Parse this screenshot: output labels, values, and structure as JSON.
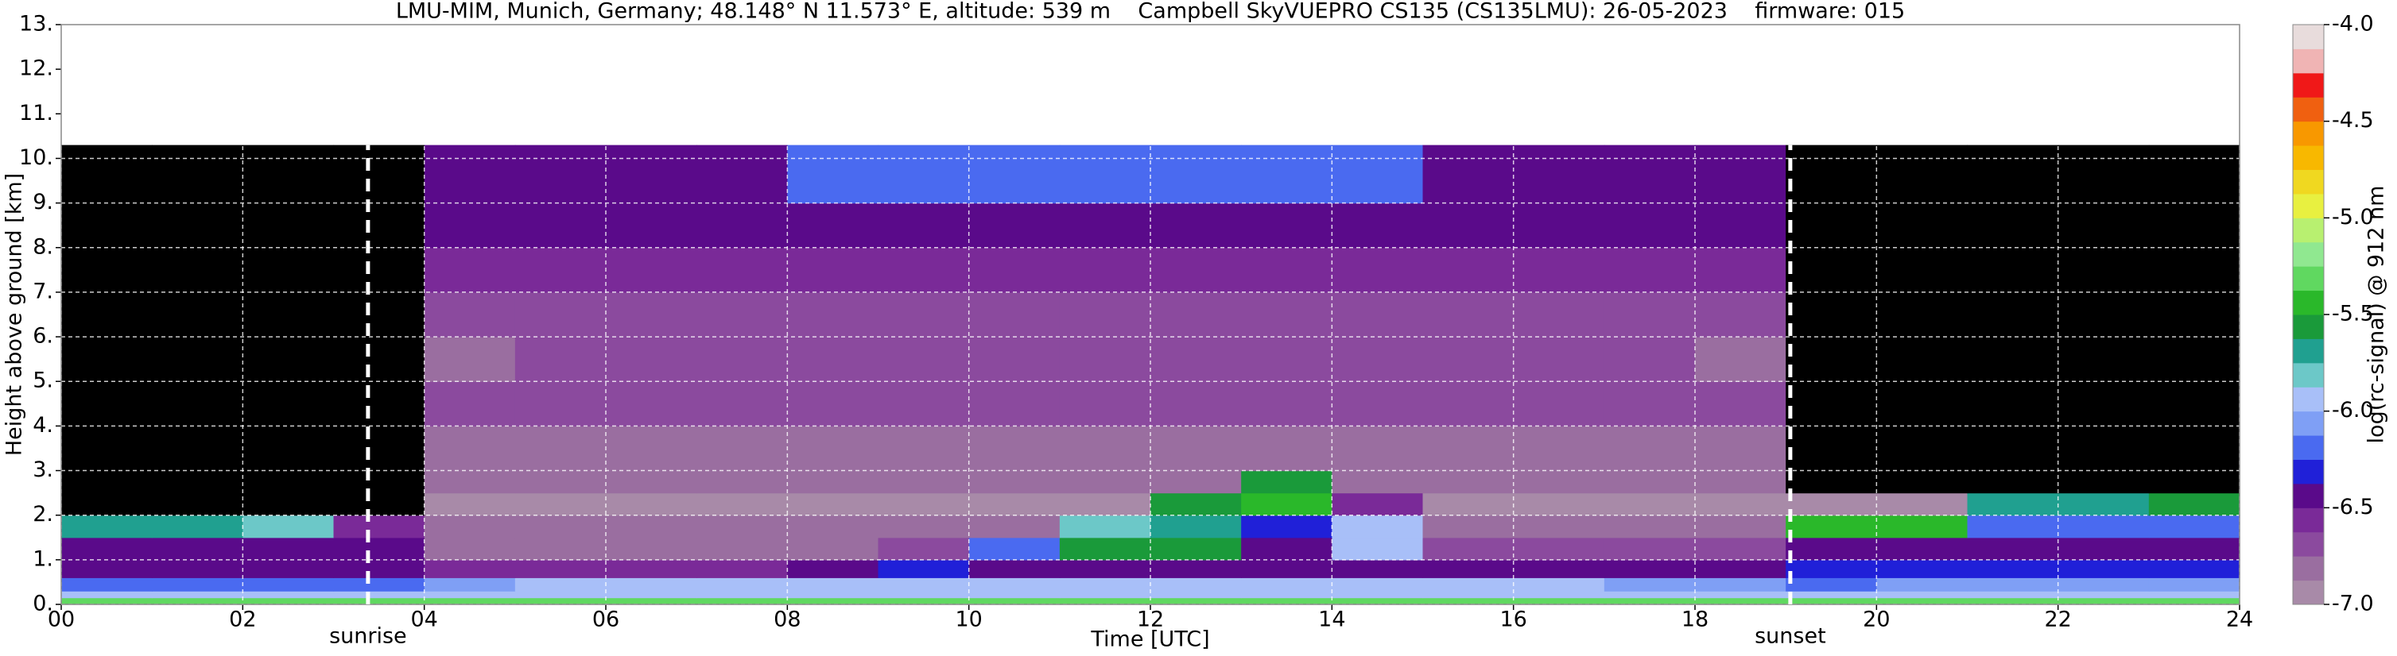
{
  "chart_data": {
    "type": "heatmap",
    "title": "LMU-MIM, Munich, Germany; 48.148° N 11.573° E, altitude: 539 m    Campbell SkyVUEPRO CS135 (CS135LMU): 26-05-2023    firmware: 015",
    "x_label": "Time [UTC]",
    "y_label": "Height above ground [km]",
    "colorbar_label": "log(rc-signal) @ 912 nm",
    "xlim": [
      0,
      24
    ],
    "xticks": [
      {
        "value": 0,
        "label": "00"
      },
      {
        "value": 2,
        "label": "02"
      },
      {
        "value": 4,
        "label": "04"
      },
      {
        "value": 6,
        "label": "06"
      },
      {
        "value": 8,
        "label": "08"
      },
      10,
      12,
      14,
      16,
      18,
      20,
      22,
      24
    ],
    "ylim": [
      0,
      13
    ],
    "yticks": [
      {
        "value": 0,
        "label": "0."
      },
      {
        "value": 1,
        "label": "1."
      },
      {
        "value": 2,
        "label": "2."
      },
      {
        "value": 3,
        "label": "3."
      },
      {
        "value": 4,
        "label": "4."
      },
      {
        "value": 5,
        "label": "5."
      },
      {
        "value": 6,
        "label": "6."
      },
      {
        "value": 7,
        "label": "7."
      },
      {
        "value": 8,
        "label": "8."
      },
      {
        "value": 9,
        "label": "9."
      },
      {
        "value": 10,
        "label": "10."
      },
      {
        "value": 11,
        "label": "11."
      },
      {
        "value": 12,
        "label": "12."
      },
      {
        "value": 13,
        "label": "13."
      }
    ],
    "grid": true,
    "xbins": [
      0,
      1,
      2,
      3,
      4,
      5,
      6,
      7,
      8,
      9,
      10,
      11,
      12,
      13,
      14,
      15,
      16,
      17,
      18,
      19,
      20,
      21,
      22,
      23,
      24
    ],
    "ybins": [
      0,
      0.15,
      0.3,
      0.6,
      1,
      1.5,
      2,
      2.5,
      3,
      4,
      5,
      6,
      7,
      8,
      9,
      10.3
    ],
    "z": [
      [
        -5.3,
        -5.3,
        -5.3,
        -5.3,
        -5.3,
        -5.3,
        -5.3,
        -5.3,
        -5.3,
        -5.3,
        -5.3,
        -5.3,
        -5.3,
        -5.3,
        -5.3,
        -5.3,
        -5.3,
        -5.3,
        -5.3,
        -5.3,
        -5.3,
        -5.3,
        -5.3,
        -5.3
      ],
      [
        -5.95,
        -5.95,
        -5.95,
        -5.95,
        -5.95,
        -5.95,
        -5.95,
        -5.95,
        -5.95,
        -5.95,
        -5.95,
        -5.95,
        -5.95,
        -5.95,
        -5.95,
        -5.95,
        -5.95,
        -5.95,
        -5.95,
        -5.95,
        -5.95,
        -5.95,
        -5.95,
        -5.95
      ],
      [
        -6.2,
        -6.2,
        -6.2,
        -6.2,
        -6.1,
        -6.0,
        -6.0,
        -6.0,
        -6.0,
        -5.95,
        -6.0,
        -6.0,
        -6.0,
        -6.0,
        -6.0,
        -6.0,
        -6.0,
        -6.05,
        -6.1,
        -6.15,
        -6.1,
        -6.05,
        -6.05,
        -6.05
      ],
      [
        -6.4,
        -6.4,
        -6.4,
        -6.45,
        -6.6,
        -6.6,
        -6.6,
        -6.6,
        -6.5,
        -6.3,
        -6.5,
        -6.5,
        -6.5,
        -6.5,
        -6.5,
        -6.5,
        -6.5,
        -6.5,
        -6.45,
        -6.35,
        -6.35,
        -6.35,
        -6.35,
        -6.35
      ],
      [
        -6.4,
        -6.4,
        -6.4,
        -6.5,
        -6.8,
        -6.8,
        -6.8,
        -6.8,
        -6.8,
        -6.7,
        -6.2,
        -5.6,
        -5.6,
        -6.5,
        -6.0,
        -6.7,
        -6.7,
        -6.7,
        -6.65,
        -6.4,
        -6.4,
        -6.4,
        -6.4,
        -6.4
      ],
      [
        -5.7,
        -5.7,
        -5.8,
        -6.6,
        -6.85,
        -6.85,
        -6.85,
        -6.85,
        -6.85,
        -6.85,
        -6.85,
        -5.8,
        -5.7,
        -6.3,
        -5.9,
        -6.85,
        -6.85,
        -6.85,
        -6.85,
        -5.5,
        -5.5,
        -6.2,
        -6.2,
        -6.2
      ],
      [
        -7.1,
        -7.1,
        -7.1,
        -7.1,
        -6.9,
        -6.9,
        -6.9,
        -6.9,
        -6.9,
        -6.9,
        -6.9,
        -6.9,
        -5.6,
        -5.4,
        -6.6,
        -6.9,
        -6.9,
        -6.9,
        -6.9,
        -6.9,
        -6.9,
        -5.7,
        -5.7,
        -5.6
      ],
      [
        -7.1,
        -7.1,
        -7.1,
        -7.1,
        -6.85,
        -6.85,
        -6.85,
        -6.85,
        -6.85,
        -6.85,
        -6.85,
        -6.85,
        -6.85,
        -5.6,
        -6.85,
        -6.85,
        -6.85,
        -6.85,
        -6.85,
        -7.1,
        -7.1,
        -7.1,
        -7.1,
        -7.1
      ],
      [
        -7.15,
        -7.15,
        -7.15,
        -7.15,
        -6.8,
        -6.8,
        -6.8,
        -6.8,
        -6.8,
        -6.8,
        -6.8,
        -6.8,
        -6.8,
        -6.8,
        -6.8,
        -6.8,
        -6.8,
        -6.8,
        -6.8,
        -7.15,
        -7.15,
        -7.15,
        -7.15,
        -7.15
      ],
      [
        -7.2,
        -7.2,
        -7.2,
        -7.2,
        -6.75,
        -6.75,
        -6.75,
        -6.75,
        -6.75,
        -6.75,
        -6.75,
        -6.75,
        -6.75,
        -6.75,
        -6.75,
        -6.75,
        -6.75,
        -6.75,
        -6.75,
        -7.2,
        -7.2,
        -7.2,
        -7.2,
        -7.2
      ],
      [
        -7.2,
        -7.2,
        -7.2,
        -7.2,
        -6.8,
        -6.7,
        -6.7,
        -6.7,
        -6.7,
        -6.7,
        -6.7,
        -6.7,
        -6.7,
        -6.7,
        -6.7,
        -6.7,
        -6.7,
        -6.7,
        -6.8,
        -7.2,
        -7.2,
        -7.2,
        -7.2,
        -7.2
      ],
      [
        -7.2,
        -7.2,
        -7.2,
        -7.2,
        -6.65,
        -6.65,
        -6.65,
        -6.65,
        -6.65,
        -6.65,
        -6.65,
        -6.65,
        -6.65,
        -6.65,
        -6.65,
        -6.65,
        -6.65,
        -6.65,
        -6.65,
        -7.2,
        -7.2,
        -7.2,
        -7.2,
        -7.2
      ],
      [
        -7.2,
        -7.2,
        -7.2,
        -7.2,
        -6.6,
        -6.6,
        -6.6,
        -6.6,
        -6.6,
        -6.6,
        -6.6,
        -6.6,
        -6.6,
        -6.6,
        -6.6,
        -6.6,
        -6.6,
        -6.6,
        -6.6,
        -7.2,
        -7.2,
        -7.2,
        -7.2,
        -7.2
      ],
      [
        -7.2,
        -7.2,
        -7.2,
        -7.2,
        -6.5,
        -6.5,
        -6.5,
        -6.5,
        -6.5,
        -6.5,
        -6.5,
        -6.5,
        -6.5,
        -6.5,
        -6.5,
        -6.5,
        -6.5,
        -6.5,
        -6.5,
        -7.2,
        -7.2,
        -7.2,
        -7.2,
        -7.2
      ],
      [
        -7.2,
        -7.2,
        -7.2,
        -7.2,
        -6.4,
        -6.4,
        -6.4,
        -6.4,
        -6.2,
        -6.2,
        -6.2,
        -6.2,
        -6.2,
        -6.2,
        -6.2,
        -6.4,
        -6.4,
        -6.4,
        -6.4,
        -7.2,
        -7.2,
        -7.2,
        -7.2,
        -7.2
      ]
    ],
    "clim": [
      -7,
      -4
    ],
    "cticks": [
      {
        "value": -7,
        "label": "-7.0"
      },
      -6.5,
      {
        "value": -6,
        "label": "-6.0"
      },
      -5.5,
      {
        "value": -5,
        "label": "-5.0"
      },
      -4.5,
      {
        "value": -4,
        "label": "-4.0"
      }
    ],
    "under_color": "#000000",
    "colorscale": [
      "#a88aa8",
      "#9a6ea0",
      "#8b4a9e",
      "#7a2a98",
      "#5a0a8a",
      "#2020d8",
      "#4a6af0",
      "#7f9ff5",
      "#a8bff8",
      "#6cc8c8",
      "#20a090",
      "#1a9a3a",
      "#2ab82a",
      "#60d860",
      "#90e890",
      "#b8f070",
      "#e8f040",
      "#f0d820",
      "#f8b800",
      "#f89800",
      "#f06010",
      "#f01818",
      "#f0b4b4",
      "#e8dcdc"
    ],
    "annotations": [
      {
        "text": "sunrise",
        "x": 3.38
      },
      {
        "text": "sunset",
        "x": 19.05
      }
    ]
  }
}
